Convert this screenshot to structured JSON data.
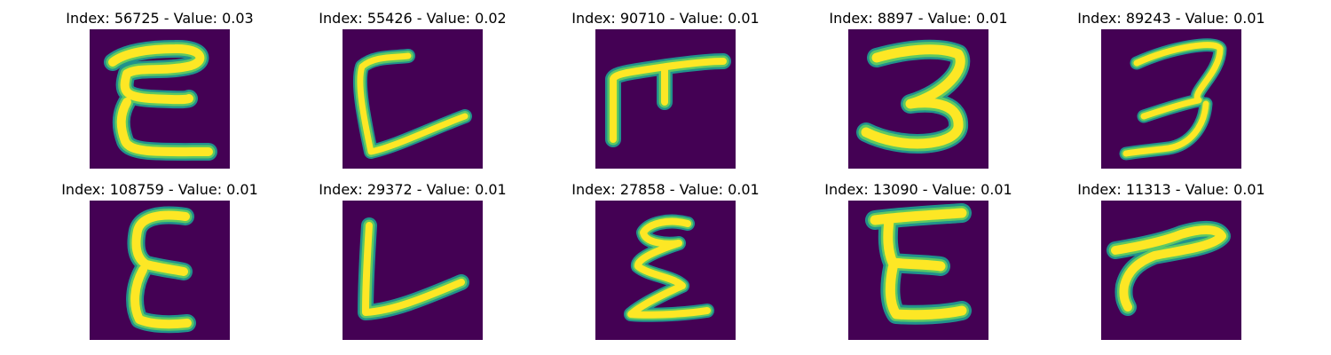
{
  "colors": {
    "background": "#440154",
    "stroke_outer": "#21918c",
    "stroke_mid": "#5ec962",
    "stroke_inner": "#fde725"
  },
  "panels": [
    {
      "title": "Index: 56725 - Value: 0.03",
      "glyph": "handwritten-E"
    },
    {
      "title": "Index: 55426 - Value: 0.02",
      "glyph": "handwritten-C"
    },
    {
      "title": "Index: 90710 - Value: 0.01",
      "glyph": "handwritten-T-shape"
    },
    {
      "title": "Index: 8897 - Value: 0.01",
      "glyph": "handwritten-3"
    },
    {
      "title": "Index: 89243 - Value: 0.01",
      "glyph": "handwritten-3-slanted"
    },
    {
      "title": "Index: 108759 - Value: 0.01",
      "glyph": "handwritten-E"
    },
    {
      "title": "Index: 29372 - Value: 0.01",
      "glyph": "handwritten-L"
    },
    {
      "title": "Index: 27858 - Value: 0.01",
      "glyph": "handwritten-sigma"
    },
    {
      "title": "Index: 13090 - Value: 0.01",
      "glyph": "handwritten-E"
    },
    {
      "title": "Index: 11313 - Value: 0.01",
      "glyph": "handwritten-r-shape"
    }
  ]
}
